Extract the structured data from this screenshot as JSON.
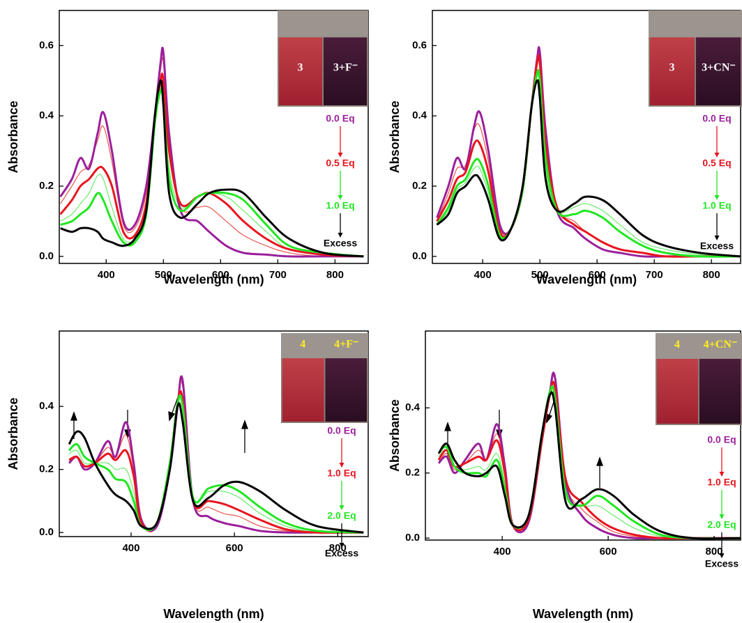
{
  "chart_data": [
    {
      "type": "line",
      "xlabel": "Wavelength (nm)",
      "ylabel": "Absorbance",
      "xlim": [
        318,
        858
      ],
      "ylim": [
        -0.02,
        0.7
      ],
      "xticks": [
        400,
        500,
        600,
        700,
        800
      ],
      "yticks": [
        {
          "value": 0,
          "label": "0.0"
        },
        0.2,
        0.4,
        0.6
      ],
      "x": [
        320,
        340,
        355,
        370,
        385,
        395,
        410,
        430,
        450,
        470,
        485,
        495,
        500,
        510,
        530,
        560,
        580,
        610,
        640,
        680,
        720,
        780,
        850
      ],
      "series": [
        {
          "color": "#e8443c",
          "bold": false,
          "values": [
            0.15,
            0.2,
            0.24,
            0.26,
            0.33,
            0.37,
            0.27,
            0.09,
            0.08,
            0.18,
            0.39,
            0.53,
            0.55,
            0.33,
            0.14,
            0.14,
            0.14,
            0.1,
            0.06,
            0.03,
            0.01,
            0,
            0
          ]
        },
        {
          "color": "#5ee85e",
          "bold": false,
          "values": [
            0.1,
            0.12,
            0.15,
            0.18,
            0.23,
            0.22,
            0.14,
            0.05,
            0.05,
            0.13,
            0.38,
            0.48,
            0.47,
            0.25,
            0.14,
            0.17,
            0.18,
            0.17,
            0.13,
            0.07,
            0.02,
            0.005,
            0
          ]
        },
        {
          "color": "#9b1f9b",
          "bold": true,
          "values": [
            0.17,
            0.22,
            0.28,
            0.25,
            0.35,
            0.41,
            0.3,
            0.1,
            0.09,
            0.2,
            0.4,
            0.55,
            0.58,
            0.35,
            0.13,
            0.1,
            0.07,
            0.03,
            0.01,
            0.005,
            0,
            0,
            0
          ]
        },
        {
          "color": "#e8141e",
          "bold": true,
          "values": [
            0.12,
            0.16,
            0.2,
            0.22,
            0.25,
            0.25,
            0.2,
            0.07,
            0.06,
            0.15,
            0.38,
            0.5,
            0.5,
            0.3,
            0.15,
            0.17,
            0.18,
            0.15,
            0.1,
            0.05,
            0.02,
            0.005,
            0
          ]
        },
        {
          "color": "#22e622",
          "bold": true,
          "values": [
            0.09,
            0.1,
            0.12,
            0.14,
            0.18,
            0.16,
            0.1,
            0.04,
            0.04,
            0.12,
            0.38,
            0.47,
            0.44,
            0.22,
            0.13,
            0.17,
            0.18,
            0.18,
            0.16,
            0.09,
            0.03,
            0.01,
            0
          ]
        },
        {
          "color": "#000000",
          "bold": true,
          "values": [
            0.08,
            0.07,
            0.08,
            0.08,
            0.07,
            0.05,
            0.04,
            0.03,
            0.05,
            0.13,
            0.4,
            0.5,
            0.43,
            0.18,
            0.11,
            0.15,
            0.18,
            0.19,
            0.18,
            0.11,
            0.05,
            0.01,
            0
          ]
        }
      ],
      "inset_labels": [
        "3",
        "3+F⁻"
      ],
      "inset_label_color": "#ffffff",
      "steps": [
        {
          "text": "0.0 Eq",
          "color": "#9b1f9b"
        },
        {
          "text": "0.5 Eq",
          "color": "#e8141e"
        },
        {
          "text": "1.0 Eq",
          "color": "#22e622"
        },
        {
          "text": "Excess",
          "color": "#000000"
        }
      ]
    },
    {
      "type": "line",
      "xlabel": "Wavelength (nm)",
      "ylabel": "Absorbance",
      "xlim": [
        312,
        851
      ],
      "ylim": [
        -0.02,
        0.7
      ],
      "xticks": [
        400,
        500,
        600,
        700,
        800
      ],
      "yticks": [
        {
          "value": 0,
          "label": "0.0"
        },
        0.2,
        0.4,
        0.6
      ],
      "x": [
        320,
        340,
        355,
        370,
        385,
        395,
        410,
        430,
        450,
        470,
        485,
        495,
        500,
        510,
        530,
        560,
        580,
        610,
        640,
        680,
        720,
        780,
        850
      ],
      "series": [
        {
          "color": "#e8443c",
          "bold": false,
          "values": [
            0.1,
            0.18,
            0.25,
            0.26,
            0.36,
            0.37,
            0.27,
            0.08,
            0.08,
            0.19,
            0.41,
            0.56,
            0.57,
            0.34,
            0.14,
            0.1,
            0.07,
            0.04,
            0.02,
            0.01,
            0,
            0,
            0
          ]
        },
        {
          "color": "#5ee85e",
          "bold": false,
          "values": [
            0.09,
            0.13,
            0.19,
            0.21,
            0.25,
            0.25,
            0.18,
            0.06,
            0.08,
            0.19,
            0.42,
            0.51,
            0.48,
            0.25,
            0.13,
            0.14,
            0.15,
            0.13,
            0.09,
            0.04,
            0.02,
            0.005,
            0
          ]
        },
        {
          "color": "#9b1f9b",
          "bold": true,
          "values": [
            0.11,
            0.2,
            0.28,
            0.25,
            0.37,
            0.41,
            0.3,
            0.09,
            0.08,
            0.2,
            0.42,
            0.56,
            0.58,
            0.36,
            0.13,
            0.08,
            0.05,
            0.02,
            0.01,
            0,
            0,
            0,
            0
          ]
        },
        {
          "color": "#e8141e",
          "bold": true,
          "values": [
            0.1,
            0.16,
            0.22,
            0.24,
            0.32,
            0.32,
            0.24,
            0.07,
            0.08,
            0.19,
            0.42,
            0.55,
            0.55,
            0.32,
            0.14,
            0.09,
            0.07,
            0.04,
            0.02,
            0.01,
            0,
            0,
            0
          ]
        },
        {
          "color": "#22e622",
          "bold": true,
          "values": [
            0.09,
            0.14,
            0.2,
            0.22,
            0.27,
            0.27,
            0.2,
            0.06,
            0.08,
            0.19,
            0.42,
            0.52,
            0.5,
            0.28,
            0.13,
            0.12,
            0.13,
            0.11,
            0.07,
            0.03,
            0.01,
            0,
            0
          ]
        },
        {
          "color": "#000000",
          "bold": true,
          "values": [
            0.09,
            0.12,
            0.18,
            0.2,
            0.23,
            0.22,
            0.16,
            0.05,
            0.08,
            0.2,
            0.42,
            0.5,
            0.45,
            0.22,
            0.13,
            0.15,
            0.17,
            0.16,
            0.12,
            0.06,
            0.03,
            0.01,
            0
          ]
        }
      ],
      "inset_labels": [
        "3",
        "3+CN⁻"
      ],
      "inset_label_color": "#ffffff",
      "steps": [
        {
          "text": "0.0 Eq",
          "color": "#9b1f9b"
        },
        {
          "text": "0.5 Eq",
          "color": "#e8141e"
        },
        {
          "text": "1.0 Eq",
          "color": "#22e622"
        },
        {
          "text": "Excess",
          "color": "#000000"
        }
      ]
    },
    {
      "type": "line",
      "xlabel": "Wavelength (nm)",
      "ylabel": "Absorbance",
      "xlim": [
        261,
        859
      ],
      "ylim": [
        -0.013,
        0.639
      ],
      "xticks": [
        400,
        600,
        800
      ],
      "yticks": [
        {
          "value": 0,
          "label": "0.0"
        },
        0.2,
        0.4
      ],
      "x": [
        280,
        295,
        310,
        330,
        355,
        370,
        390,
        405,
        420,
        450,
        475,
        490,
        500,
        520,
        550,
        580,
        610,
        650,
        700,
        760,
        850
      ],
      "series": [
        {
          "color": "#e8443c",
          "bold": false,
          "values": [
            0.22,
            0.24,
            0.2,
            0.22,
            0.27,
            0.24,
            0.31,
            0.2,
            0.03,
            0.02,
            0.21,
            0.41,
            0.46,
            0.1,
            0.08,
            0.06,
            0.05,
            0.02,
            0.005,
            0,
            0
          ]
        },
        {
          "color": "#5ee85e",
          "bold": false,
          "values": [
            0.25,
            0.26,
            0.22,
            0.22,
            0.22,
            0.2,
            0.2,
            0.13,
            0.02,
            0.03,
            0.22,
            0.41,
            0.41,
            0.11,
            0.13,
            0.13,
            0.11,
            0.06,
            0.02,
            0,
            0
          ]
        },
        {
          "color": "#9b1f9b",
          "bold": true,
          "values": [
            0.22,
            0.24,
            0.2,
            0.22,
            0.29,
            0.24,
            0.35,
            0.22,
            0.04,
            0.02,
            0.2,
            0.4,
            0.48,
            0.1,
            0.05,
            0.03,
            0.02,
            0.005,
            0,
            0,
            0
          ]
        },
        {
          "color": "#e8141e",
          "bold": true,
          "values": [
            0.23,
            0.24,
            0.21,
            0.22,
            0.25,
            0.23,
            0.26,
            0.18,
            0.03,
            0.03,
            0.22,
            0.41,
            0.42,
            0.1,
            0.1,
            0.09,
            0.07,
            0.04,
            0.01,
            0,
            0
          ]
        },
        {
          "color": "#22e622",
          "bold": true,
          "values": [
            0.26,
            0.28,
            0.24,
            0.22,
            0.2,
            0.17,
            0.16,
            0.1,
            0.02,
            0.03,
            0.22,
            0.41,
            0.4,
            0.11,
            0.14,
            0.15,
            0.13,
            0.08,
            0.03,
            0.005,
            0
          ]
        },
        {
          "color": "#000000",
          "bold": true,
          "values": [
            0.28,
            0.32,
            0.3,
            0.22,
            0.15,
            0.12,
            0.1,
            0.07,
            0.02,
            0.03,
            0.2,
            0.4,
            0.35,
            0.1,
            0.11,
            0.15,
            0.16,
            0.13,
            0.07,
            0.02,
            0
          ]
        }
      ],
      "inset_labels": [
        "4",
        "4+F⁻"
      ],
      "inset_label_color": "#ffee22",
      "steps": [
        {
          "text": "0.0 Eq",
          "color": "#9b1f9b"
        },
        {
          "text": "1.0 Eq",
          "color": "#e8141e"
        },
        {
          "text": "2.0 Eq",
          "color": "#22e622"
        },
        {
          "text": "Excess",
          "color": "#000000"
        }
      ]
    },
    {
      "type": "line",
      "xlabel": "Wavelength (nm)",
      "ylabel": "Absorbance",
      "xlim": [
        255,
        850
      ],
      "ylim": [
        -0.006,
        0.636
      ],
      "xticks": [
        400,
        600,
        800
      ],
      "yticks": [
        {
          "value": 0,
          "label": "0.0"
        },
        0.2,
        0.4
      ],
      "x": [
        280,
        295,
        310,
        330,
        355,
        370,
        390,
        405,
        420,
        450,
        475,
        490,
        500,
        520,
        550,
        580,
        610,
        650,
        700,
        760,
        850
      ],
      "series": [
        {
          "color": "#e8443c",
          "bold": false,
          "values": [
            0.23,
            0.26,
            0.21,
            0.23,
            0.27,
            0.24,
            0.32,
            0.21,
            0.04,
            0.05,
            0.3,
            0.45,
            0.48,
            0.17,
            0.09,
            0.05,
            0.02,
            0.005,
            0,
            0,
            0
          ]
        },
        {
          "color": "#5ee85e",
          "bold": false,
          "values": [
            0.25,
            0.27,
            0.22,
            0.21,
            0.22,
            0.21,
            0.26,
            0.17,
            0.04,
            0.06,
            0.31,
            0.45,
            0.45,
            0.15,
            0.1,
            0.1,
            0.07,
            0.03,
            0.005,
            0,
            0
          ]
        },
        {
          "color": "#9b1f9b",
          "bold": true,
          "values": [
            0.23,
            0.25,
            0.2,
            0.24,
            0.29,
            0.24,
            0.35,
            0.22,
            0.04,
            0.05,
            0.3,
            0.45,
            0.49,
            0.17,
            0.07,
            0.03,
            0.01,
            0,
            0,
            0,
            0
          ]
        },
        {
          "color": "#e8141e",
          "bold": true,
          "values": [
            0.24,
            0.27,
            0.22,
            0.23,
            0.25,
            0.24,
            0.3,
            0.2,
            0.04,
            0.06,
            0.3,
            0.44,
            0.46,
            0.18,
            0.11,
            0.06,
            0.03,
            0.01,
            0,
            0,
            0
          ]
        },
        {
          "color": "#22e622",
          "bold": true,
          "values": [
            0.26,
            0.28,
            0.22,
            0.2,
            0.2,
            0.19,
            0.24,
            0.15,
            0.04,
            0.07,
            0.32,
            0.45,
            0.43,
            0.14,
            0.1,
            0.13,
            0.1,
            0.05,
            0.01,
            0,
            0
          ]
        },
        {
          "color": "#000000",
          "bold": true,
          "values": [
            0.26,
            0.29,
            0.24,
            0.2,
            0.19,
            0.2,
            0.22,
            0.13,
            0.04,
            0.07,
            0.32,
            0.44,
            0.4,
            0.11,
            0.12,
            0.15,
            0.13,
            0.07,
            0.02,
            0,
            0
          ]
        }
      ],
      "inset_labels": [
        "4",
        "4+CN⁻"
      ],
      "inset_label_color": "#ffee22",
      "steps": [
        {
          "text": "0.0 Eq",
          "color": "#9b1f9b"
        },
        {
          "text": "1.0 Eq",
          "color": "#e8141e"
        },
        {
          "text": "2.0 Eq",
          "color": "#22e622"
        },
        {
          "text": "Excess",
          "color": "#000000"
        }
      ]
    }
  ]
}
